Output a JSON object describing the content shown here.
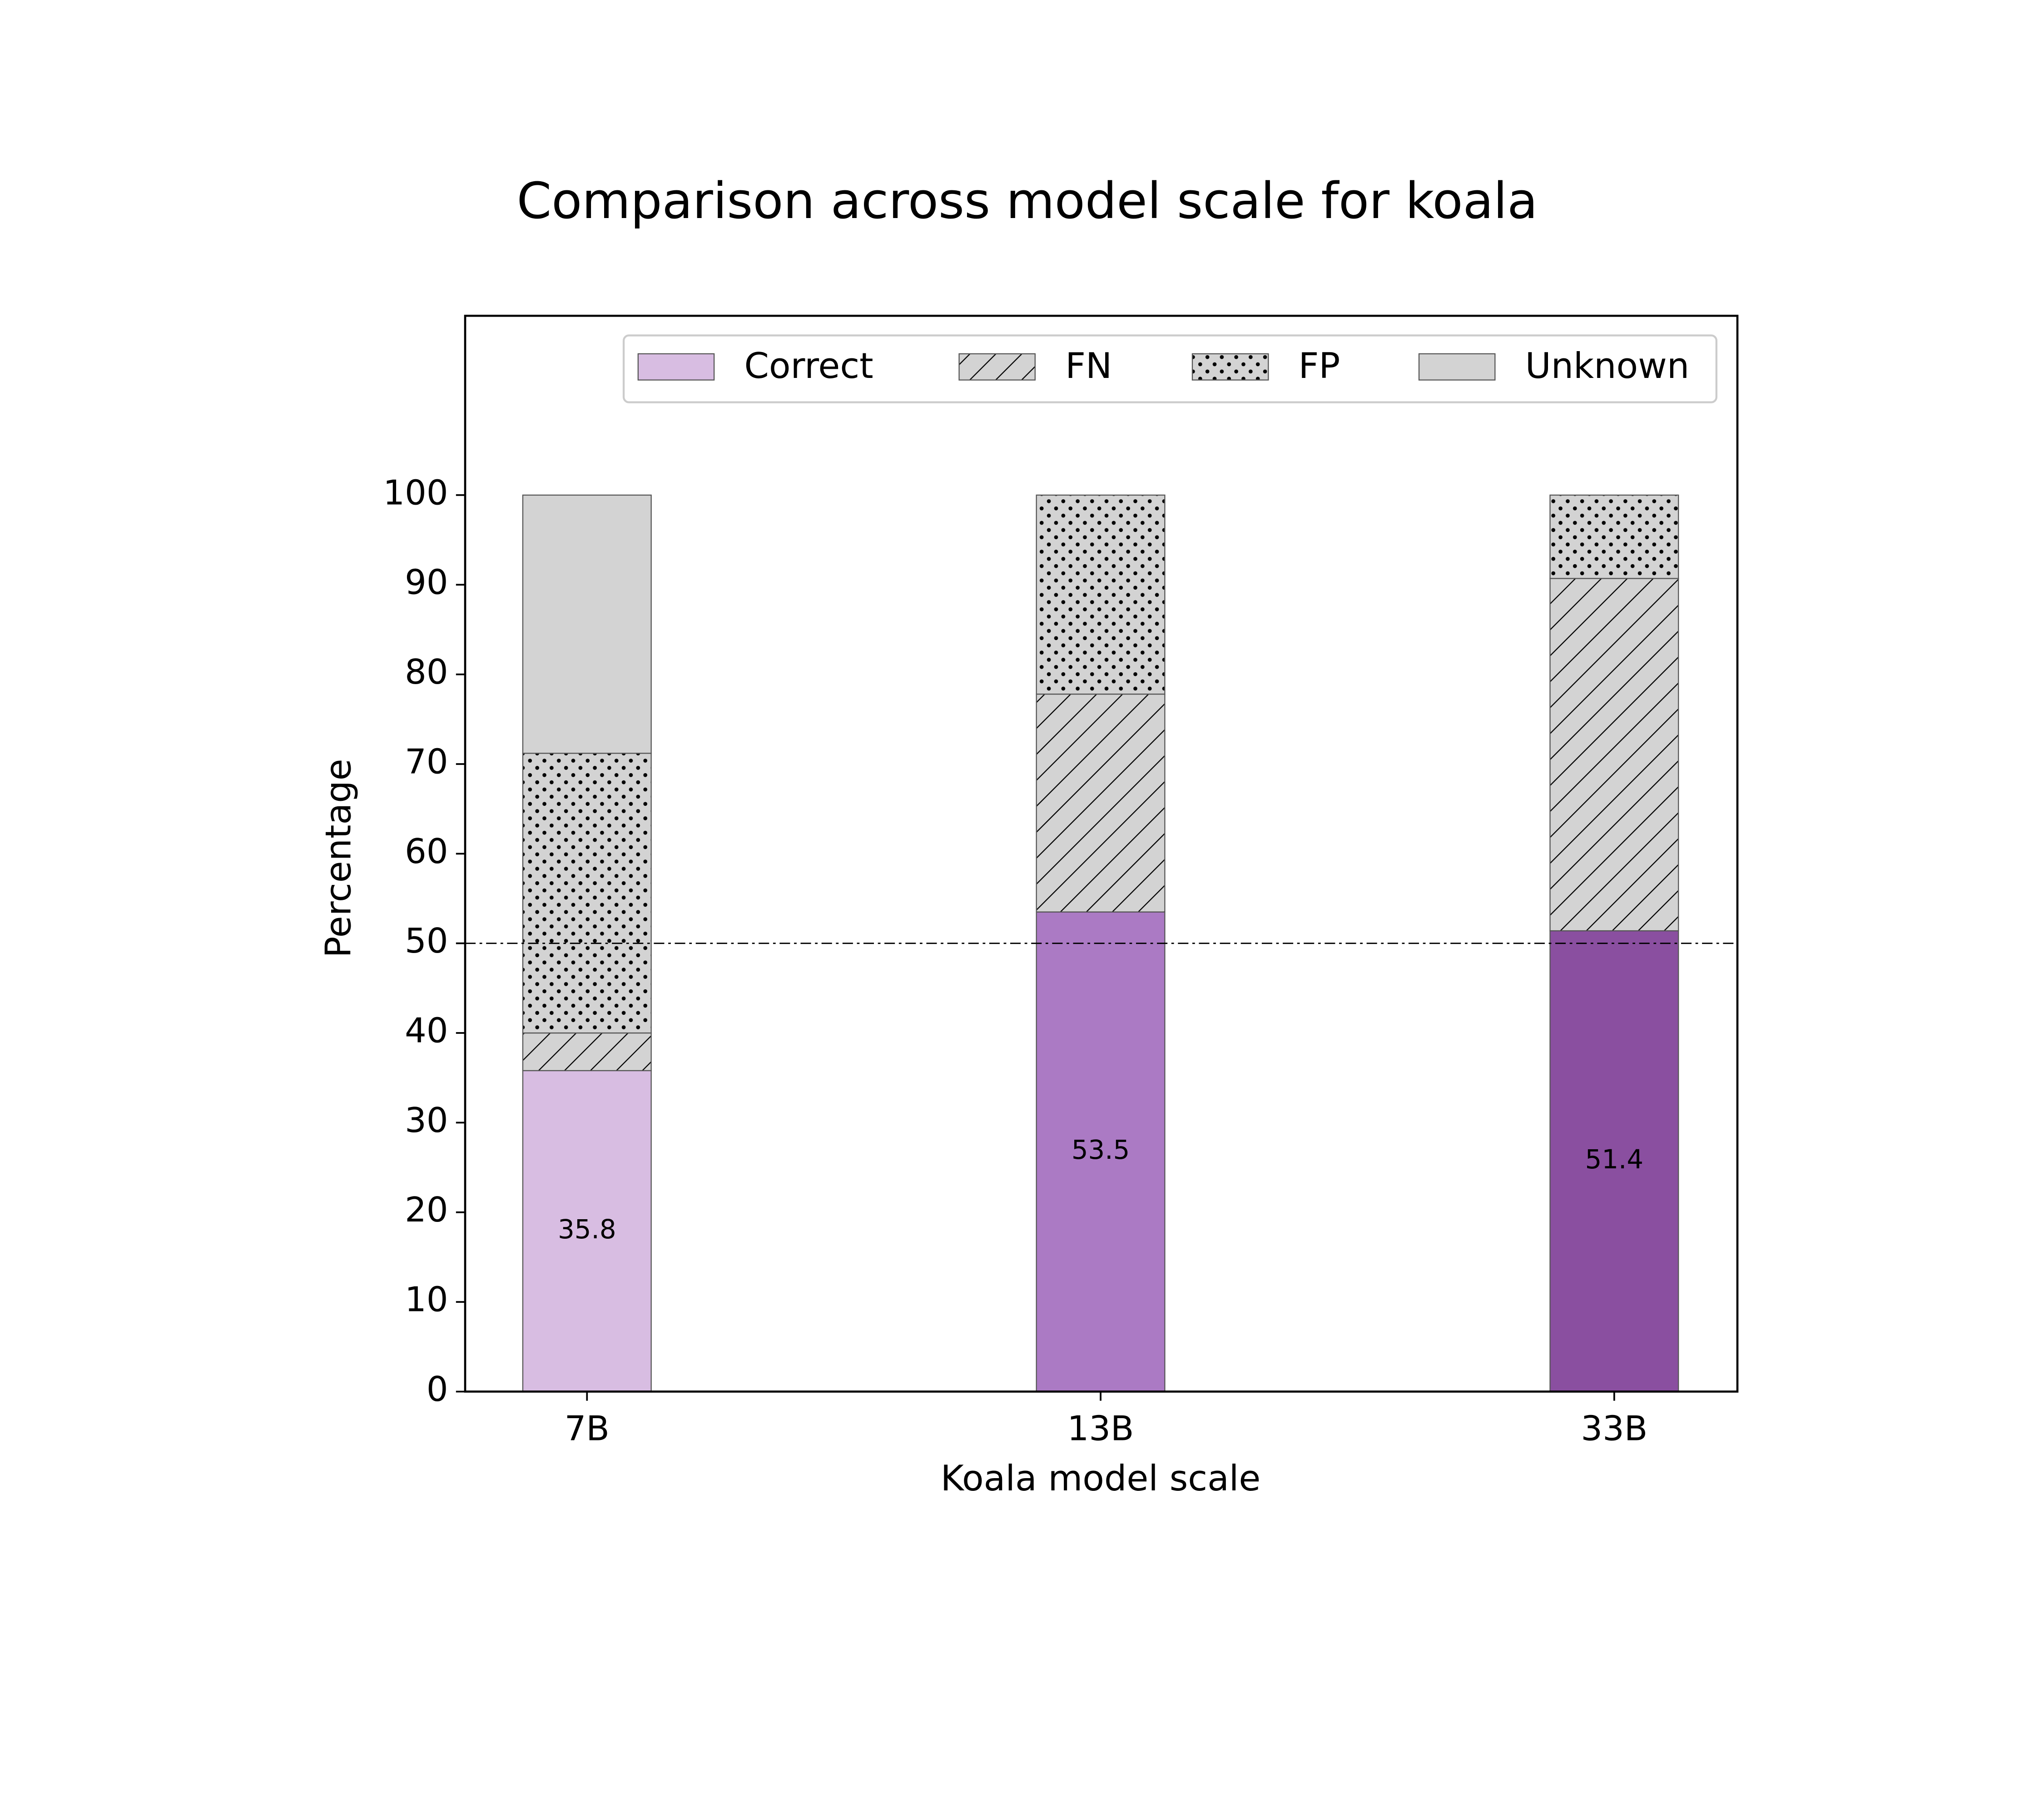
{
  "chart_data": {
    "type": "stacked_bar",
    "title": "Comparison across model scale for koala",
    "x_label": "Koala model scale",
    "y_label": "Percentage",
    "categories": [
      "7B",
      "13B",
      "33B"
    ],
    "series": [
      {
        "name": "Correct",
        "colors": [
          "#d8bde2",
          "#ab7ac4",
          "#8a4fa0"
        ],
        "hatch": null,
        "labeled": true,
        "values": [
          35.8,
          53.5,
          51.4
        ]
      },
      {
        "name": "FN",
        "color": "#d3d3d3",
        "hatch": "///",
        "values": [
          4.2,
          24.3,
          39.3
        ]
      },
      {
        "name": "FP",
        "color": "#d3d3d3",
        "hatch": "...",
        "values": [
          31.2,
          22.2,
          9.3
        ]
      },
      {
        "name": "Unknown",
        "color": "#d3d3d3",
        "hatch": null,
        "values": [
          28.8,
          0,
          0
        ]
      }
    ],
    "ylim": [
      0,
      120
    ],
    "yticks": [
      0,
      10,
      20,
      30,
      40,
      50,
      60,
      70,
      80,
      90,
      100
    ],
    "hline": 50,
    "legend": "upper right"
  }
}
